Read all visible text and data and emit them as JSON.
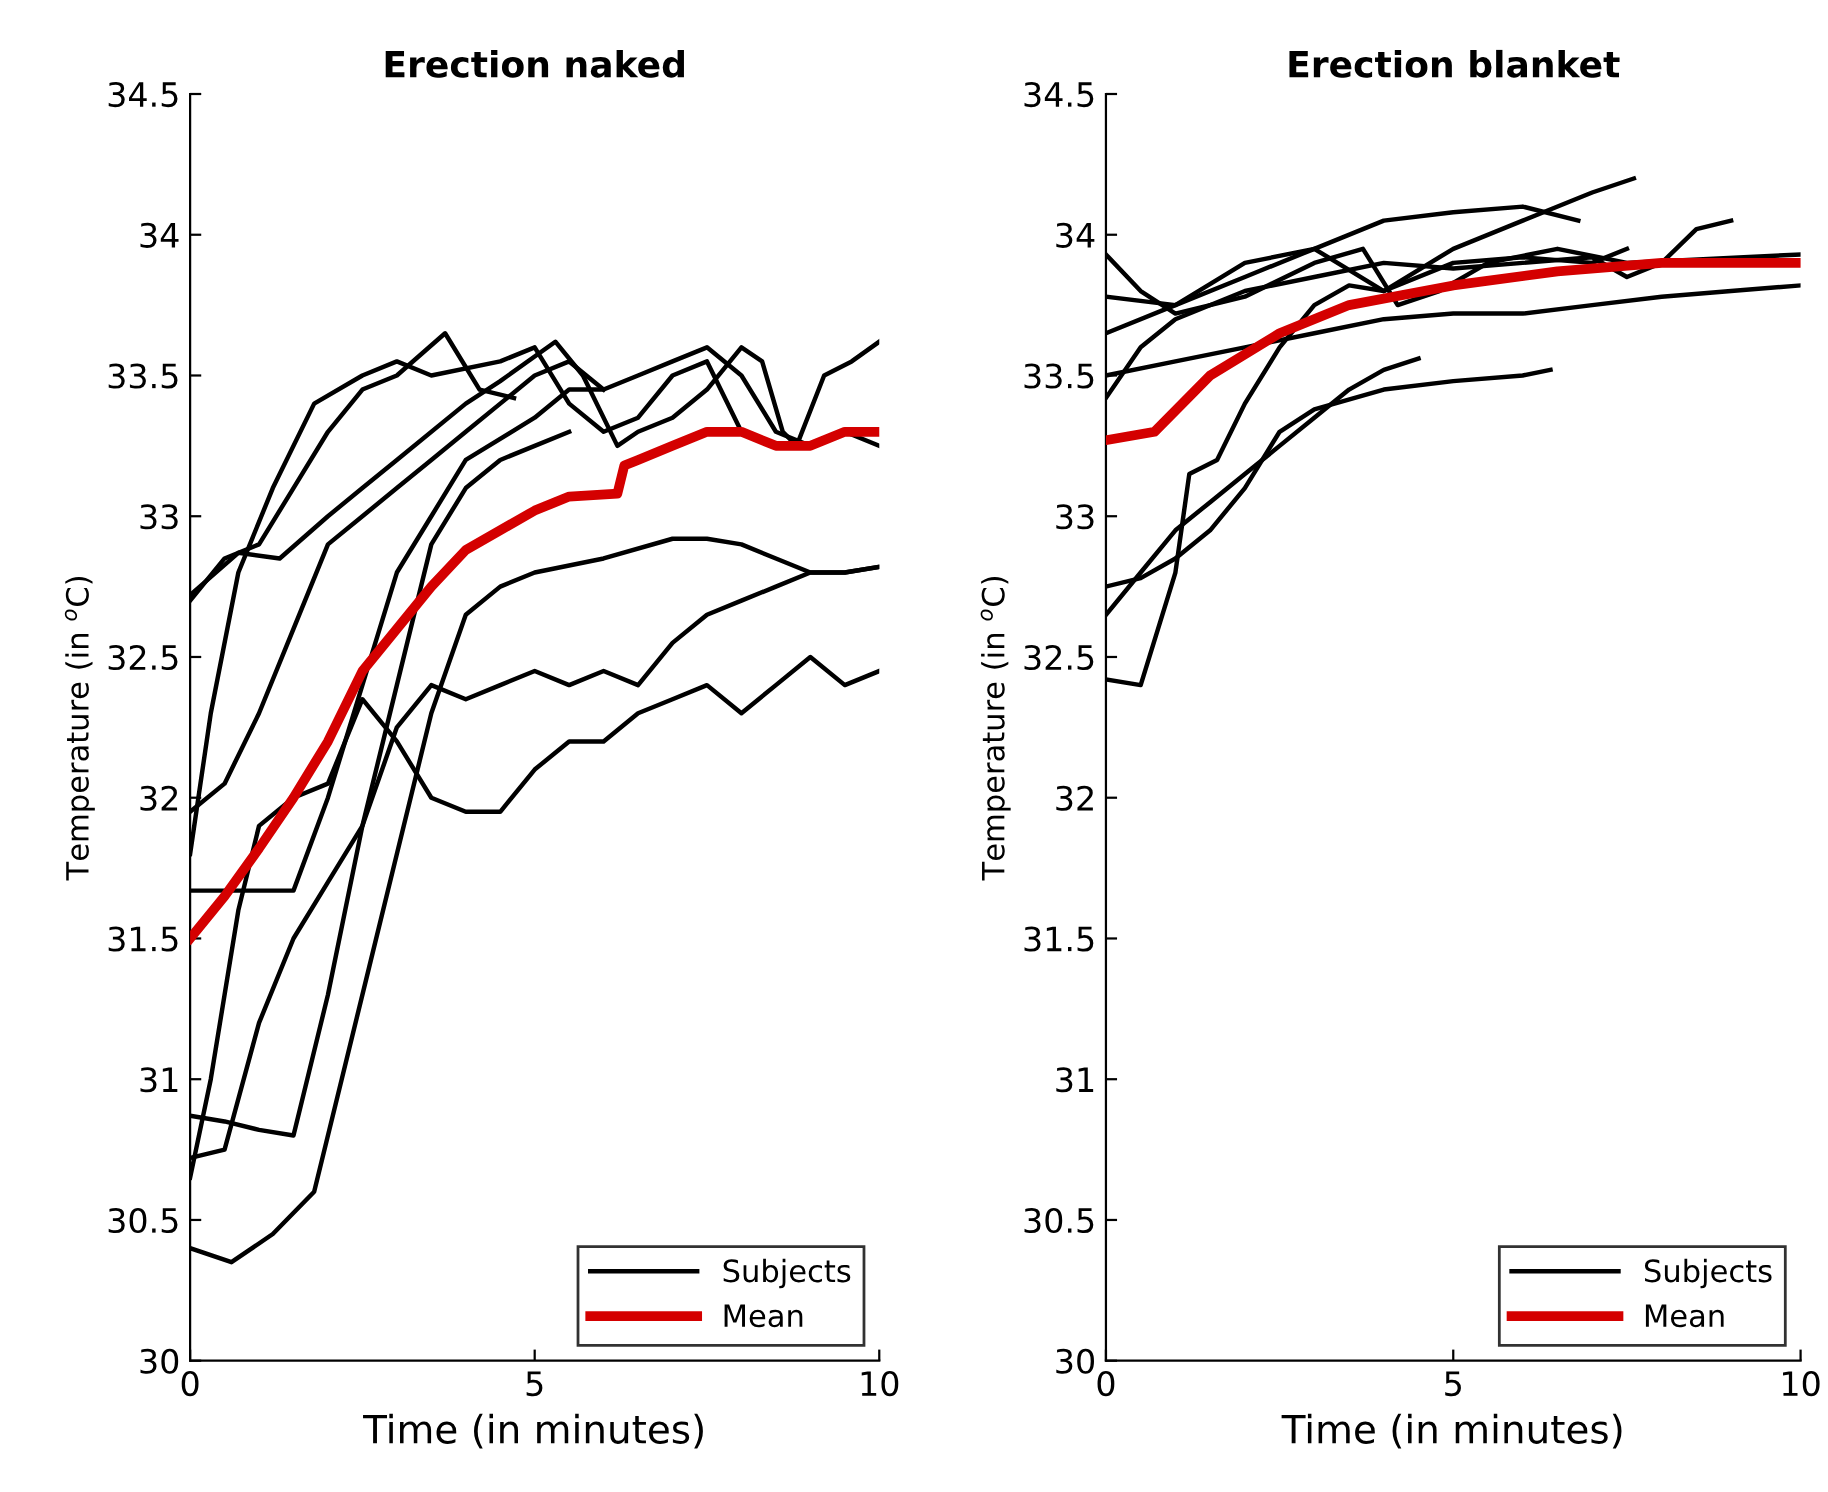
{
  "chart_data": [
    {
      "type": "line",
      "title": "Erection naked",
      "xlabel": "Time (in minutes)",
      "ylabel": "Temperature (in $^{o}$C)",
      "xlim": [
        0,
        10
      ],
      "ylim": [
        30,
        34.5
      ],
      "xticks": [
        0,
        5,
        10
      ],
      "yticks": [
        30,
        30.5,
        31,
        31.5,
        32,
        32.5,
        33,
        33.5,
        34,
        34.5
      ],
      "grid": false,
      "legend": "bottom right",
      "line_style": "solid",
      "series": [
        {
          "name": "Subjects",
          "color": "#000000",
          "x": [
            0,
            0.5,
            1,
            1.5,
            2,
            2.5,
            3,
            3.7,
            4.2,
            4.7
          ],
          "values": [
            32.7,
            32.85,
            32.9,
            33.1,
            33.3,
            33.45,
            33.5,
            33.65,
            33.45,
            33.42
          ]
        },
        {
          "color": "#000000",
          "x": [
            0,
            0.7,
            1.3,
            2,
            2.5,
            3,
            4,
            4.5,
            5.3,
            5.7,
            6.2,
            6.5,
            7,
            7.5,
            8,
            8.3,
            8.6,
            8.8,
            9.2,
            9.6,
            10
          ],
          "values": [
            32.72,
            32.87,
            32.85,
            33.0,
            33.1,
            33.2,
            33.4,
            33.48,
            33.62,
            33.5,
            33.25,
            33.3,
            33.35,
            33.45,
            33.6,
            33.55,
            33.3,
            33.25,
            33.5,
            33.55,
            33.62
          ]
        },
        {
          "color": "#000000",
          "x": [
            0,
            0.5,
            1,
            1.5,
            2,
            2.5,
            3,
            3.5,
            4,
            4.5,
            5,
            5.5,
            6
          ],
          "values": [
            31.95,
            32.05,
            32.3,
            32.6,
            32.9,
            33.0,
            33.1,
            33.2,
            33.3,
            33.4,
            33.5,
            33.55,
            33.45
          ]
        },
        {
          "color": "#000000",
          "x": [
            0,
            1.5,
            2,
            2.5,
            3,
            3.5,
            4,
            5,
            5.5,
            6,
            6.5,
            7,
            7.5,
            8,
            8.5,
            9,
            9.5,
            10
          ],
          "values": [
            31.67,
            31.67,
            32.0,
            32.4,
            32.8,
            33.0,
            33.2,
            33.35,
            33.45,
            33.45,
            33.5,
            33.55,
            33.6,
            33.5,
            33.3,
            33.25,
            33.3,
            33.25
          ]
        },
        {
          "color": "#000000",
          "x": [
            0,
            0.3,
            0.7,
            1.2,
            1.8,
            2.5,
            3,
            3.5,
            4.5,
            5,
            5.5,
            6,
            6.5,
            7,
            7.5,
            8,
            8.5
          ],
          "values": [
            31.8,
            32.3,
            32.8,
            33.1,
            33.4,
            33.5,
            33.55,
            33.5,
            33.55,
            33.6,
            33.4,
            33.3,
            33.35,
            33.5,
            33.55,
            33.3,
            33.25
          ]
        },
        {
          "color": "#000000",
          "x": [
            0,
            0.3,
            0.7,
            1,
            1.5,
            2,
            2.5,
            3,
            3.5,
            4,
            4.5,
            5,
            5.5,
            6,
            6.5,
            7,
            7.5,
            8,
            8.5,
            9,
            9.5,
            10
          ],
          "values": [
            30.65,
            31.0,
            31.6,
            31.9,
            32.0,
            32.05,
            32.35,
            32.2,
            32.0,
            31.95,
            31.95,
            32.1,
            32.2,
            32.2,
            32.3,
            32.35,
            32.4,
            32.3,
            32.4,
            32.5,
            32.4,
            32.45
          ]
        },
        {
          "color": "#000000",
          "x": [
            0,
            0.5,
            1,
            1.5,
            2,
            2.5,
            3,
            3.5,
            4,
            4.5,
            5,
            5.5,
            6,
            6.5,
            7,
            7.5,
            8,
            8.5,
            9,
            9.5,
            10
          ],
          "values": [
            30.87,
            30.85,
            30.82,
            30.8,
            31.3,
            31.9,
            32.25,
            32.4,
            32.35,
            32.4,
            32.45,
            32.4,
            32.45,
            32.4,
            32.55,
            32.65,
            32.7,
            32.75,
            32.8,
            32.8,
            32.82
          ]
        },
        {
          "color": "#000000",
          "x": [
            0,
            0.6,
            1.2,
            1.8,
            2.2,
            2.6,
            3,
            3.5,
            4,
            4.5,
            5,
            6,
            7,
            7.5,
            8,
            8.5,
            9,
            9.5,
            10
          ],
          "values": [
            30.4,
            30.35,
            30.45,
            30.6,
            31.0,
            31.4,
            31.8,
            32.3,
            32.65,
            32.75,
            32.8,
            32.85,
            32.92,
            32.92,
            32.9,
            32.85,
            32.8,
            32.8,
            32.82
          ]
        },
        {
          "color": "#000000",
          "x": [
            0,
            0.5,
            1,
            1.5,
            2,
            2.5,
            3,
            3.5,
            4,
            4.5,
            5,
            5.5
          ],
          "values": [
            30.72,
            30.75,
            31.2,
            31.5,
            31.7,
            31.9,
            32.4,
            32.9,
            33.1,
            33.2,
            33.25,
            33.3
          ]
        },
        {
          "name": "Mean",
          "color": "#d40000",
          "x": [
            0,
            0.5,
            1,
            1.5,
            2,
            2.5,
            3,
            3.5,
            4,
            4.5,
            5,
            5.5,
            6.2,
            6.3,
            6.5,
            7,
            7.5,
            8,
            8.5,
            9,
            9.5,
            10
          ],
          "values": [
            31.5,
            31.65,
            31.82,
            32.0,
            32.2,
            32.45,
            32.6,
            32.75,
            32.88,
            32.95,
            33.02,
            33.07,
            33.08,
            33.18,
            33.2,
            33.25,
            33.3,
            33.3,
            33.25,
            33.25,
            33.3,
            33.3
          ]
        }
      ]
    },
    {
      "type": "line",
      "title": "Erection blanket",
      "xlabel": "Time (in minutes)",
      "ylabel": "Temperature (in $^{o}$C)",
      "xlim": [
        0,
        10
      ],
      "ylim": [
        30,
        34.5
      ],
      "xticks": [
        0,
        5,
        10
      ],
      "yticks": [
        30,
        30.5,
        31,
        31.5,
        32,
        32.5,
        33,
        33.5,
        34,
        34.5
      ],
      "grid": false,
      "legend": "bottom right",
      "line_style": "solid",
      "series": [
        {
          "name": "Subjects",
          "color": "#000000",
          "x": [
            0,
            0.5,
            1,
            2,
            3,
            3.7,
            4.2,
            4.8,
            5.5,
            6.5,
            7.5,
            10
          ],
          "values": [
            33.93,
            33.8,
            33.72,
            33.78,
            33.9,
            33.95,
            33.75,
            33.8,
            33.9,
            33.95,
            33.9,
            33.93
          ]
        },
        {
          "color": "#000000",
          "x": [
            0,
            1,
            2,
            3,
            4,
            5,
            6,
            6.8
          ],
          "values": [
            33.78,
            33.75,
            33.85,
            33.95,
            34.05,
            34.08,
            34.1,
            34.05
          ]
        },
        {
          "color": "#000000",
          "x": [
            0,
            1,
            2,
            3,
            4,
            5,
            6,
            7,
            7.6
          ],
          "values": [
            33.65,
            33.75,
            33.9,
            33.95,
            33.8,
            33.95,
            34.05,
            34.15,
            34.2
          ]
        },
        {
          "color": "#000000",
          "x": [
            0,
            1,
            2,
            3,
            4,
            5,
            6,
            7,
            8,
            9,
            10
          ],
          "values": [
            33.5,
            33.55,
            33.6,
            33.65,
            33.7,
            33.72,
            33.72,
            33.75,
            33.78,
            33.8,
            33.82
          ]
        },
        {
          "color": "#000000",
          "x": [
            0,
            0.5,
            1,
            2,
            3,
            4,
            5,
            6,
            7,
            7.5,
            8,
            8.5,
            9
          ],
          "values": [
            33.42,
            33.6,
            33.7,
            33.8,
            33.85,
            33.9,
            33.88,
            33.9,
            33.92,
            33.85,
            33.9,
            34.02,
            34.05
          ]
        },
        {
          "color": "#000000",
          "x": [
            0,
            0.5,
            1,
            1.2,
            1.6,
            2,
            2.5,
            3,
            3.5,
            4,
            5,
            6,
            7,
            7.5
          ],
          "values": [
            32.42,
            32.4,
            32.8,
            33.15,
            33.2,
            33.4,
            33.6,
            33.75,
            33.82,
            33.8,
            33.9,
            33.92,
            33.9,
            33.95
          ]
        },
        {
          "color": "#000000",
          "x": [
            0,
            0.5,
            1,
            1.5,
            2,
            2.5,
            3,
            3.5,
            4,
            4.5
          ],
          "values": [
            32.65,
            32.8,
            32.95,
            33.05,
            33.15,
            33.25,
            33.35,
            33.45,
            33.52,
            33.56
          ]
        },
        {
          "color": "#000000",
          "x": [
            0,
            0.5,
            1,
            1.5,
            2,
            2.5,
            3,
            4,
            5,
            6,
            6.4
          ],
          "values": [
            32.75,
            32.78,
            32.85,
            32.95,
            33.1,
            33.3,
            33.38,
            33.45,
            33.48,
            33.5,
            33.52
          ]
        },
        {
          "name": "Mean",
          "color": "#d40000",
          "x": [
            0,
            0.7,
            1.5,
            2.5,
            3.5,
            5,
            6.5,
            8,
            10
          ],
          "values": [
            33.27,
            33.3,
            33.5,
            33.65,
            33.75,
            33.82,
            33.87,
            33.9,
            33.9
          ]
        }
      ]
    }
  ]
}
